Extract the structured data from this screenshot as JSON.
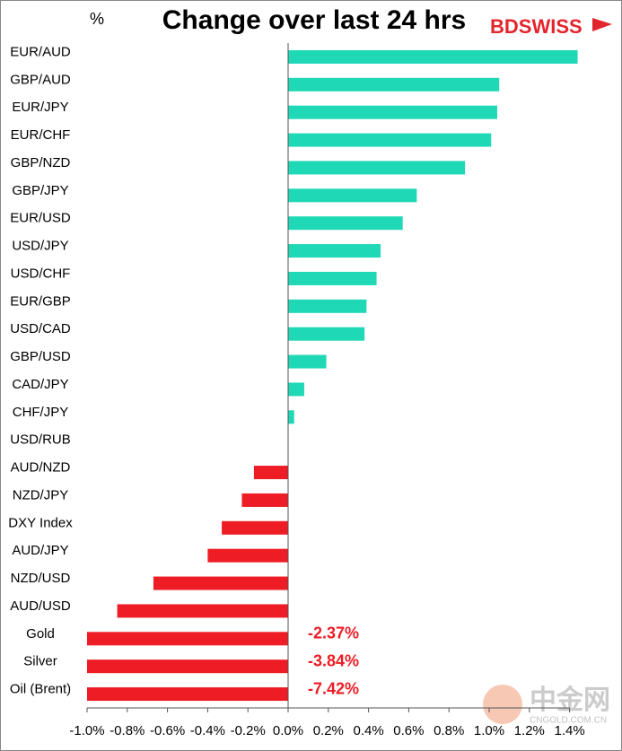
{
  "chart_data": {
    "type": "hbar",
    "title": "Change over last 24 hrs",
    "unit_label": "%",
    "logo": "BDSWISS",
    "watermark": [
      "中金网",
      "CNGOLD.COM.CN"
    ],
    "categories": [
      "EUR/AUD",
      "GBP/AUD",
      "EUR/JPY",
      "EUR/CHF",
      "GBP/NZD",
      "GBP/JPY",
      "EUR/USD",
      "USD/JPY",
      "USD/CHF",
      "EUR/GBP",
      "USD/CAD",
      "GBP/USD",
      "CAD/JPY",
      "CHF/JPY",
      "USD/RUB",
      "AUD/NZD",
      "NZD/JPY",
      "DXY Index",
      "AUD/JPY",
      "NZD/USD",
      "AUD/USD",
      "Gold",
      "Silver",
      "Oil (Brent)"
    ],
    "values": [
      1.44,
      1.05,
      1.04,
      1.01,
      0.88,
      0.64,
      0.57,
      0.46,
      0.44,
      0.39,
      0.38,
      0.19,
      0.08,
      0.03,
      0,
      -0.17,
      -0.23,
      -0.33,
      -0.4,
      -0.67,
      -0.85,
      -2.37,
      -3.84,
      -7.42
    ],
    "value_labels": [
      null,
      null,
      null,
      null,
      null,
      null,
      null,
      null,
      null,
      null,
      null,
      null,
      null,
      null,
      null,
      null,
      null,
      null,
      null,
      null,
      null,
      "-2.37%",
      "-3.84%",
      "-7.42%"
    ],
    "positive_color": "#1ed8b6",
    "negative_color": "#ee1c25",
    "xlim": [
      -1.0,
      1.4
    ],
    "xticks": [
      {
        "value": -1.0,
        "label": "-1.0%"
      },
      {
        "value": -0.8,
        "label": "-0.8%"
      },
      {
        "value": -0.6,
        "label": "-0.6%"
      },
      {
        "value": -0.4,
        "label": "-0.4%"
      },
      {
        "value": -0.2,
        "label": "-0.2%"
      },
      {
        "value": 0.0,
        "label": "0.0%"
      },
      {
        "value": 0.2,
        "label": "0.2%"
      },
      {
        "value": 0.4,
        "label": "0.4%"
      },
      {
        "value": 0.6,
        "label": "0.6%"
      },
      {
        "value": 0.8,
        "label": "0.8%"
      },
      {
        "value": 1.0,
        "label": "1.0%"
      },
      {
        "value": 1.2,
        "label": "1.2%"
      },
      {
        "value": 1.4,
        "label": "1.4%"
      }
    ],
    "grid": false
  }
}
